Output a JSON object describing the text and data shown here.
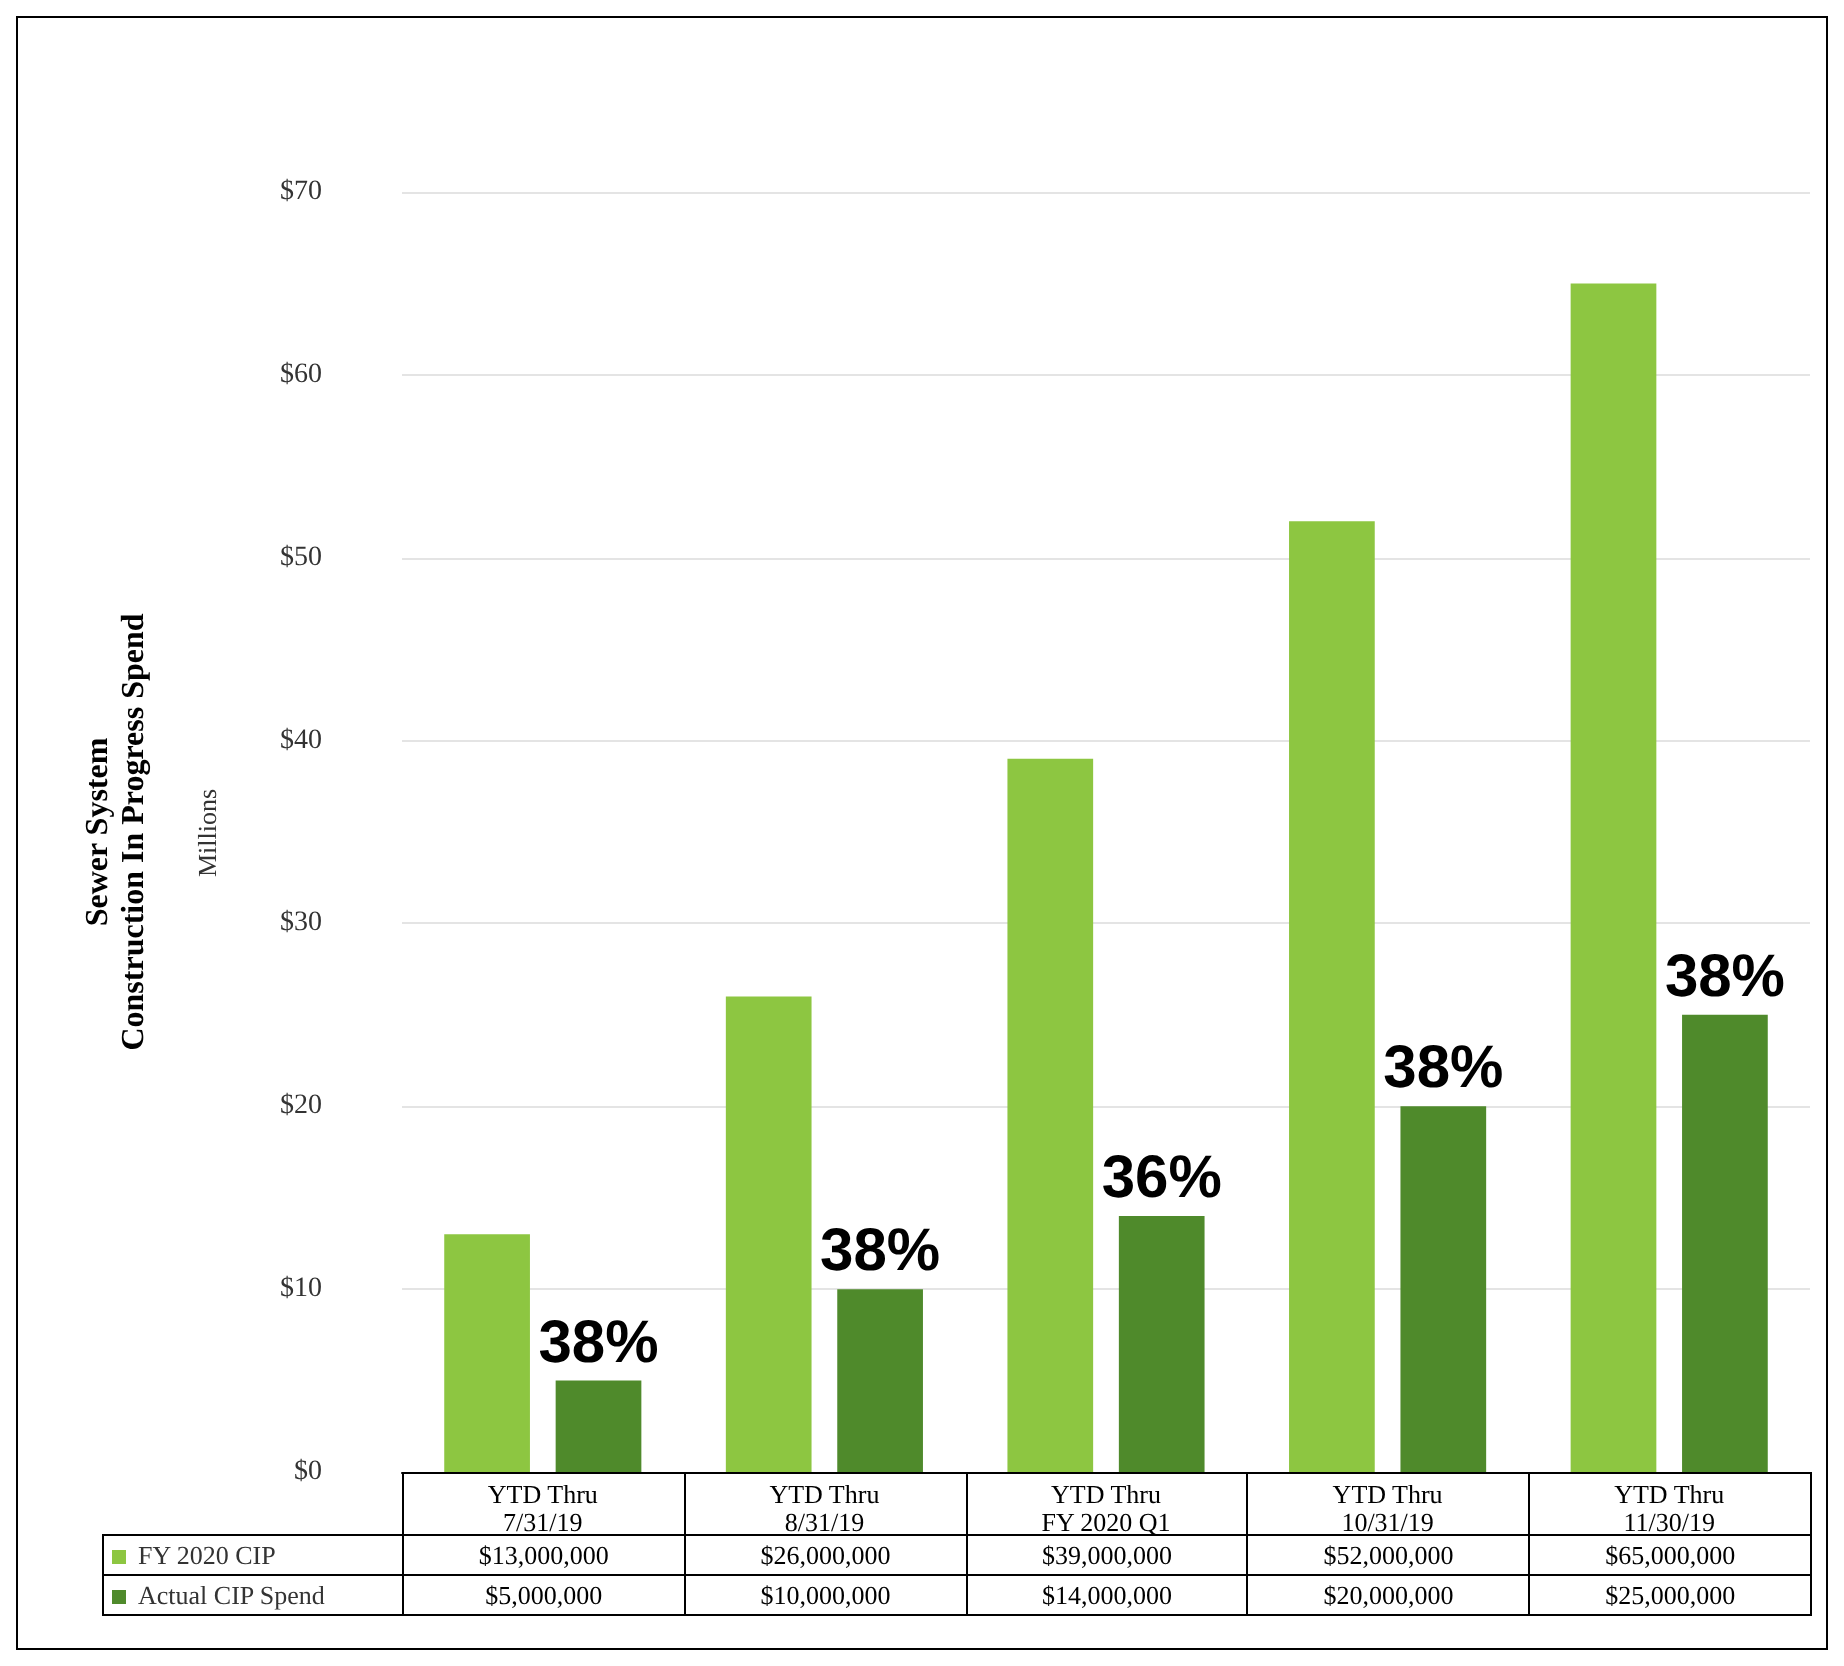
{
  "chart_data": {
    "type": "bar",
    "ylabel": "Sewer System\nConstruction In Progress Spend",
    "categories": [
      "YTD Thru\n7/31/19",
      "YTD Thru\n8/31/19",
      "YTD Thru\nFY 2020 Q1",
      "YTD Thru\n10/31/19",
      "YTD Thru\n11/30/19"
    ],
    "series": [
      {
        "name": "FY 2020 CIP",
        "color": "#8dc641",
        "values": [
          13,
          26,
          39,
          52,
          65
        ]
      },
      {
        "name": "Actual CIP Spend",
        "color": "#4f8a2b",
        "values": [
          5,
          10,
          14,
          20,
          25
        ]
      }
    ],
    "ylim": [
      0,
      70
    ],
    "yticks": [
      {
        "value": 0,
        "label": "$0"
      },
      {
        "value": 10,
        "label": "$10"
      },
      {
        "value": 20,
        "label": "$20"
      },
      {
        "value": 30,
        "label": "$30"
      },
      {
        "value": 40,
        "label": "$40"
      },
      {
        "value": 50,
        "label": "$50"
      },
      {
        "value": 60,
        "label": "$60"
      },
      {
        "value": 70,
        "label": "$70"
      }
    ],
    "grid": "y",
    "legend": "bottom left",
    "annotations": [
      "Millions",
      "38%",
      "38%",
      "36%",
      "38%",
      "38%",
      "$13,000,000",
      "$26,000,000",
      "$39,000,000",
      "$52,000,000",
      "$65,000,000",
      "$5,000,000",
      "$10,000,000",
      "$14,000,000",
      "$20,000,000",
      "$25,000,000"
    ]
  }
}
